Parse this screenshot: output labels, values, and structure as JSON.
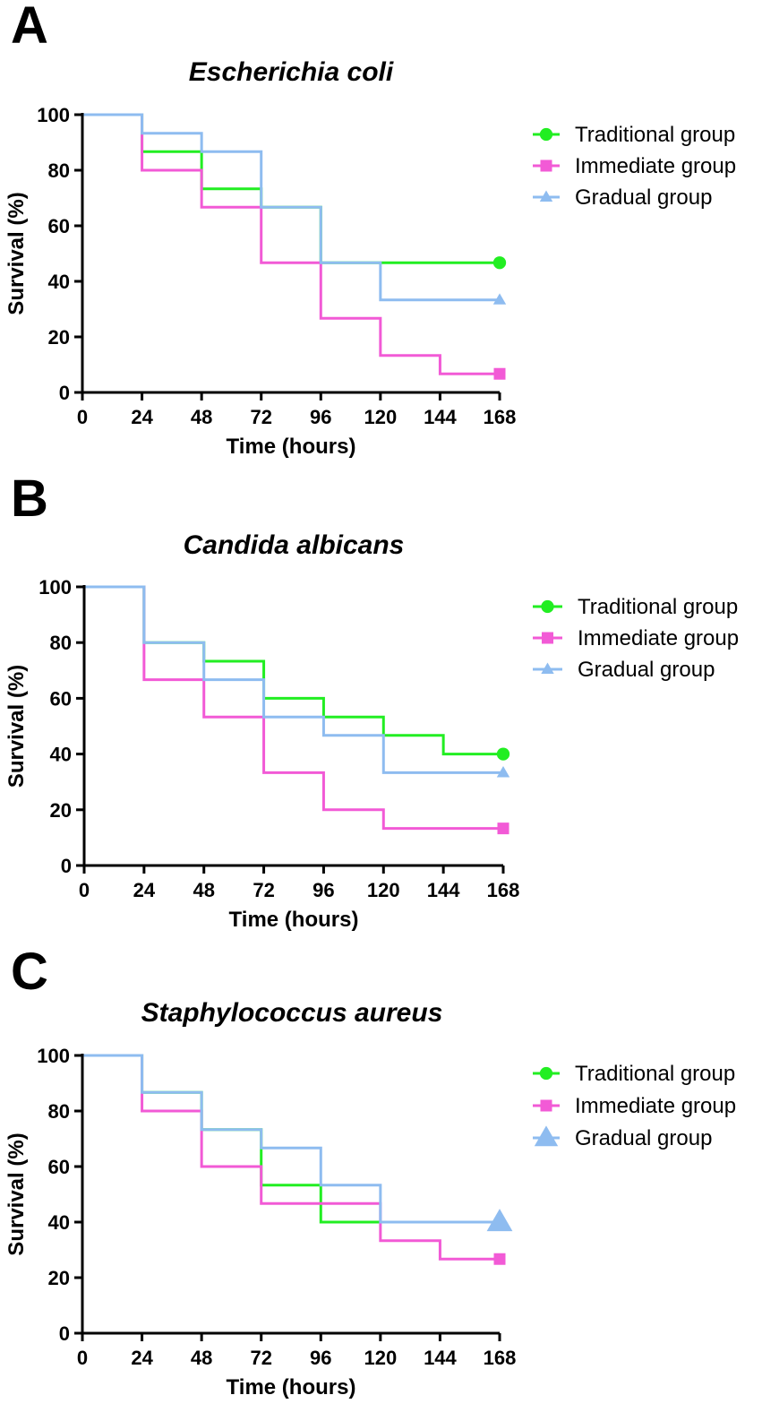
{
  "chart_data": [
    {
      "type": "line",
      "subtype": "kaplan-meier-step",
      "panel": "A",
      "title": "Escherichia coli",
      "xlabel": "Time (hours)",
      "ylabel": "Survival (%)",
      "xlim": [
        0,
        168
      ],
      "ylim": [
        0,
        100
      ],
      "xticks": [
        "0",
        "24",
        "48",
        "72",
        "96",
        "120",
        "144",
        "168"
      ],
      "yticks": [
        "0",
        "20",
        "40",
        "60",
        "80",
        "100"
      ],
      "legend_position": "top-right",
      "series": [
        {
          "name": "Traditional group",
          "color": "#22ee22",
          "marker": "circle",
          "x": [
            0,
            24,
            48,
            72,
            96,
            120,
            144,
            168
          ],
          "values": [
            100,
            86.7,
            73.3,
            66.7,
            46.7,
            46.7,
            46.7,
            46.7
          ]
        },
        {
          "name": "Immediate group",
          "color": "#f25ad6",
          "marker": "square",
          "x": [
            0,
            24,
            48,
            72,
            96,
            120,
            144,
            168
          ],
          "values": [
            100,
            80,
            66.7,
            46.7,
            26.7,
            13.3,
            6.7,
            6.7
          ]
        },
        {
          "name": "Gradual group",
          "color": "#8ebcf0",
          "marker": "triangle",
          "x": [
            0,
            24,
            48,
            72,
            96,
            120,
            144,
            168
          ],
          "values": [
            100,
            93.3,
            86.7,
            66.7,
            46.7,
            33.3,
            33.3,
            33.3
          ]
        }
      ]
    },
    {
      "type": "line",
      "subtype": "kaplan-meier-step",
      "panel": "B",
      "title": "Candida albicans",
      "xlabel": "Time (hours)",
      "ylabel": "Survival (%)",
      "xlim": [
        0,
        168
      ],
      "ylim": [
        0,
        100
      ],
      "xticks": [
        "0",
        "24",
        "48",
        "72",
        "96",
        "120",
        "144",
        "168"
      ],
      "yticks": [
        "0",
        "20",
        "40",
        "60",
        "80",
        "100"
      ],
      "legend_position": "top-right",
      "series": [
        {
          "name": "Traditional group",
          "color": "#22ee22",
          "marker": "circle",
          "x": [
            0,
            24,
            48,
            72,
            96,
            120,
            144,
            168
          ],
          "values": [
            100,
            80,
            73.3,
            60,
            53.3,
            46.7,
            40,
            40
          ]
        },
        {
          "name": "Immediate group",
          "color": "#f25ad6",
          "marker": "square",
          "x": [
            0,
            24,
            48,
            72,
            96,
            120,
            144,
            168
          ],
          "values": [
            100,
            66.7,
            53.3,
            33.3,
            20,
            13.3,
            13.3,
            13.3
          ]
        },
        {
          "name": "Gradual group",
          "color": "#8ebcf0",
          "marker": "triangle",
          "x": [
            0,
            24,
            48,
            72,
            96,
            120,
            144,
            168
          ],
          "values": [
            100,
            80,
            66.7,
            53.3,
            46.7,
            33.3,
            33.3,
            33.3
          ]
        }
      ]
    },
    {
      "type": "line",
      "subtype": "kaplan-meier-step",
      "panel": "C",
      "title": "Staphylococcus aureus",
      "xlabel": "Time (hours)",
      "ylabel": "Survival (%)",
      "xlim": [
        0,
        168
      ],
      "ylim": [
        0,
        100
      ],
      "xticks": [
        "0",
        "24",
        "48",
        "72",
        "96",
        "120",
        "144",
        "168"
      ],
      "yticks": [
        "0",
        "20",
        "40",
        "60",
        "80",
        "100"
      ],
      "legend_position": "top-right",
      "series": [
        {
          "name": "Traditional group",
          "color": "#22ee22",
          "marker": "circle",
          "x": [
            0,
            24,
            48,
            72,
            96,
            120,
            144,
            168
          ],
          "values": [
            100,
            86.7,
            73.3,
            53.3,
            40,
            40,
            40,
            40
          ]
        },
        {
          "name": "Immediate group",
          "color": "#f25ad6",
          "marker": "square",
          "x": [
            0,
            24,
            48,
            72,
            96,
            120,
            144,
            168
          ],
          "values": [
            100,
            80,
            60,
            46.7,
            46.7,
            33.3,
            26.7,
            26.7
          ]
        },
        {
          "name": "Gradual group",
          "color": "#8ebcf0",
          "marker": "triangle",
          "x": [
            0,
            24,
            48,
            72,
            96,
            120,
            144,
            168
          ],
          "values": [
            100,
            86.7,
            73.3,
            66.7,
            53.3,
            40,
            40,
            40
          ]
        }
      ]
    }
  ]
}
